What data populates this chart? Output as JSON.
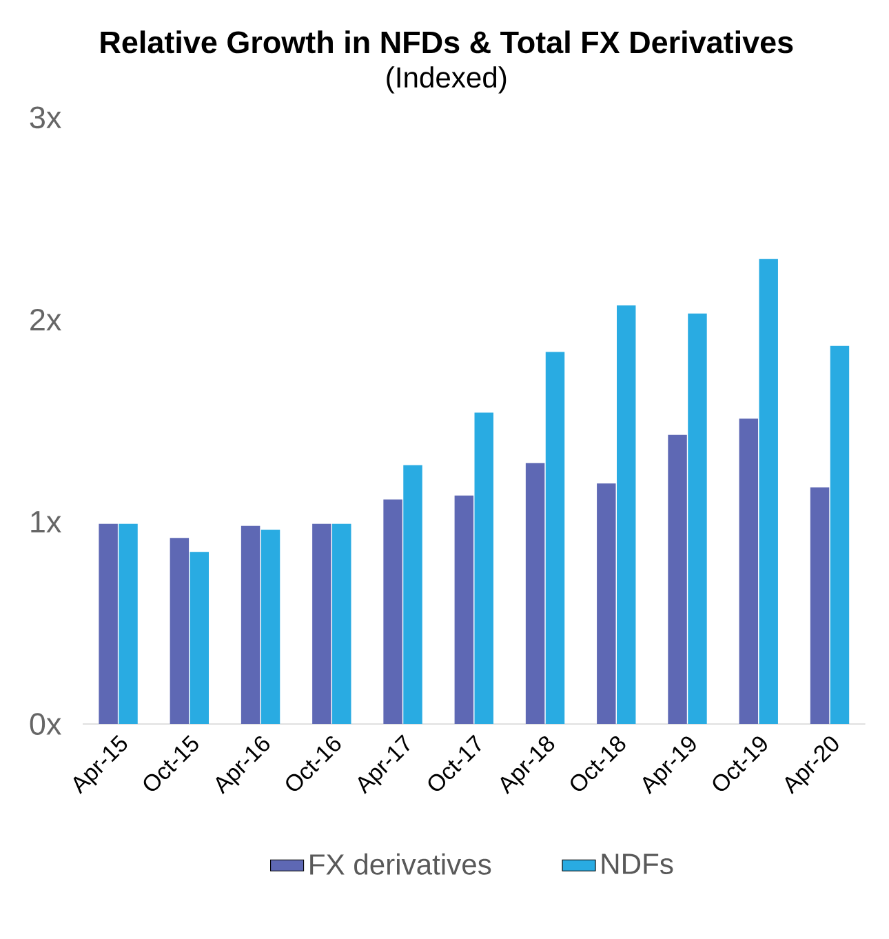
{
  "chart_data": {
    "type": "bar",
    "title": "Relative Growth in NFDs & Total FX Derivatives",
    "subtitle": "(Indexed)",
    "categories": [
      "Apr-15",
      "Oct-15",
      "Apr-16",
      "Oct-16",
      "Apr-17",
      "Oct-17",
      "Apr-18",
      "Oct-18",
      "Apr-19",
      "Oct-19",
      "Apr-20"
    ],
    "series": [
      {
        "name": "FX derivatives",
        "color": "#5e68b4",
        "values": [
          0.99,
          0.92,
          0.98,
          0.99,
          1.11,
          1.13,
          1.29,
          1.19,
          1.43,
          1.51,
          1.17
        ]
      },
      {
        "name": "NDFs",
        "color": "#29abe2",
        "values": [
          0.99,
          0.85,
          0.96,
          0.99,
          1.28,
          1.54,
          1.84,
          2.07,
          2.03,
          2.3,
          1.87
        ]
      }
    ],
    "ylim": [
      0,
      3
    ],
    "yticks": [
      {
        "value": 0,
        "label": "0x"
      },
      {
        "value": 1,
        "label": "1x"
      },
      {
        "value": 2,
        "label": "2x"
      },
      {
        "value": 3,
        "label": "3x"
      }
    ],
    "legend": "bottom"
  }
}
